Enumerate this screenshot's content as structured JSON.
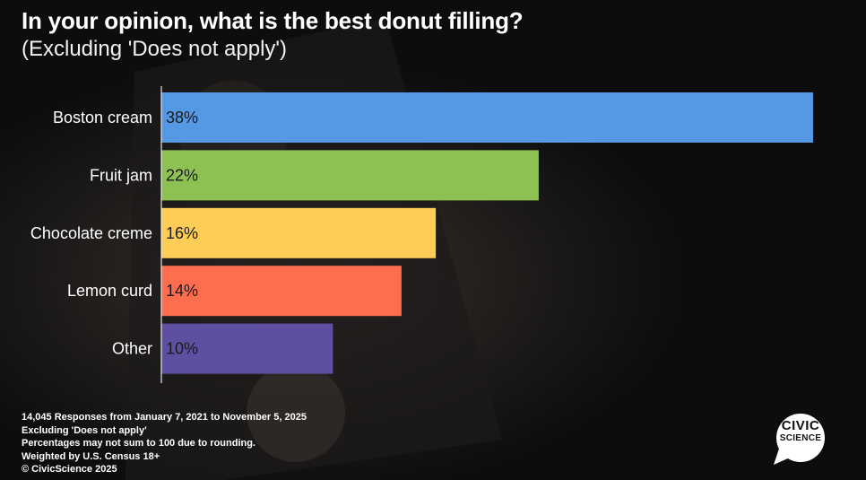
{
  "chart_data": {
    "type": "bar",
    "orientation": "horizontal",
    "title": "In your opinion, what is the best donut filling?",
    "subtitle": "(Excluding 'Does not apply')",
    "categories": [
      "Boston cream",
      "Fruit jam",
      "Chocolate creme",
      "Lemon curd",
      "Other"
    ],
    "values": [
      38,
      22,
      16,
      14,
      10
    ],
    "value_labels": [
      "38%",
      "22%",
      "16%",
      "14%",
      "10%"
    ],
    "colors": [
      "#5599e5",
      "#8ec153",
      "#ffcd55",
      "#ff6d4f",
      "#5e4fa2"
    ],
    "xlim": [
      0,
      38
    ],
    "grid": false,
    "legend": "none"
  },
  "footer": {
    "lines": [
      "14,045 Responses from January 7, 2021 to November 5, 2025",
      "Excluding 'Does not apply'",
      "Percentages may not sum to 100 due to rounding.",
      "Weighted by U.S. Census 18+",
      "© CivicScience 2025"
    ]
  },
  "logo": {
    "line1": "CIVIC",
    "line2": "SCIENCE"
  }
}
